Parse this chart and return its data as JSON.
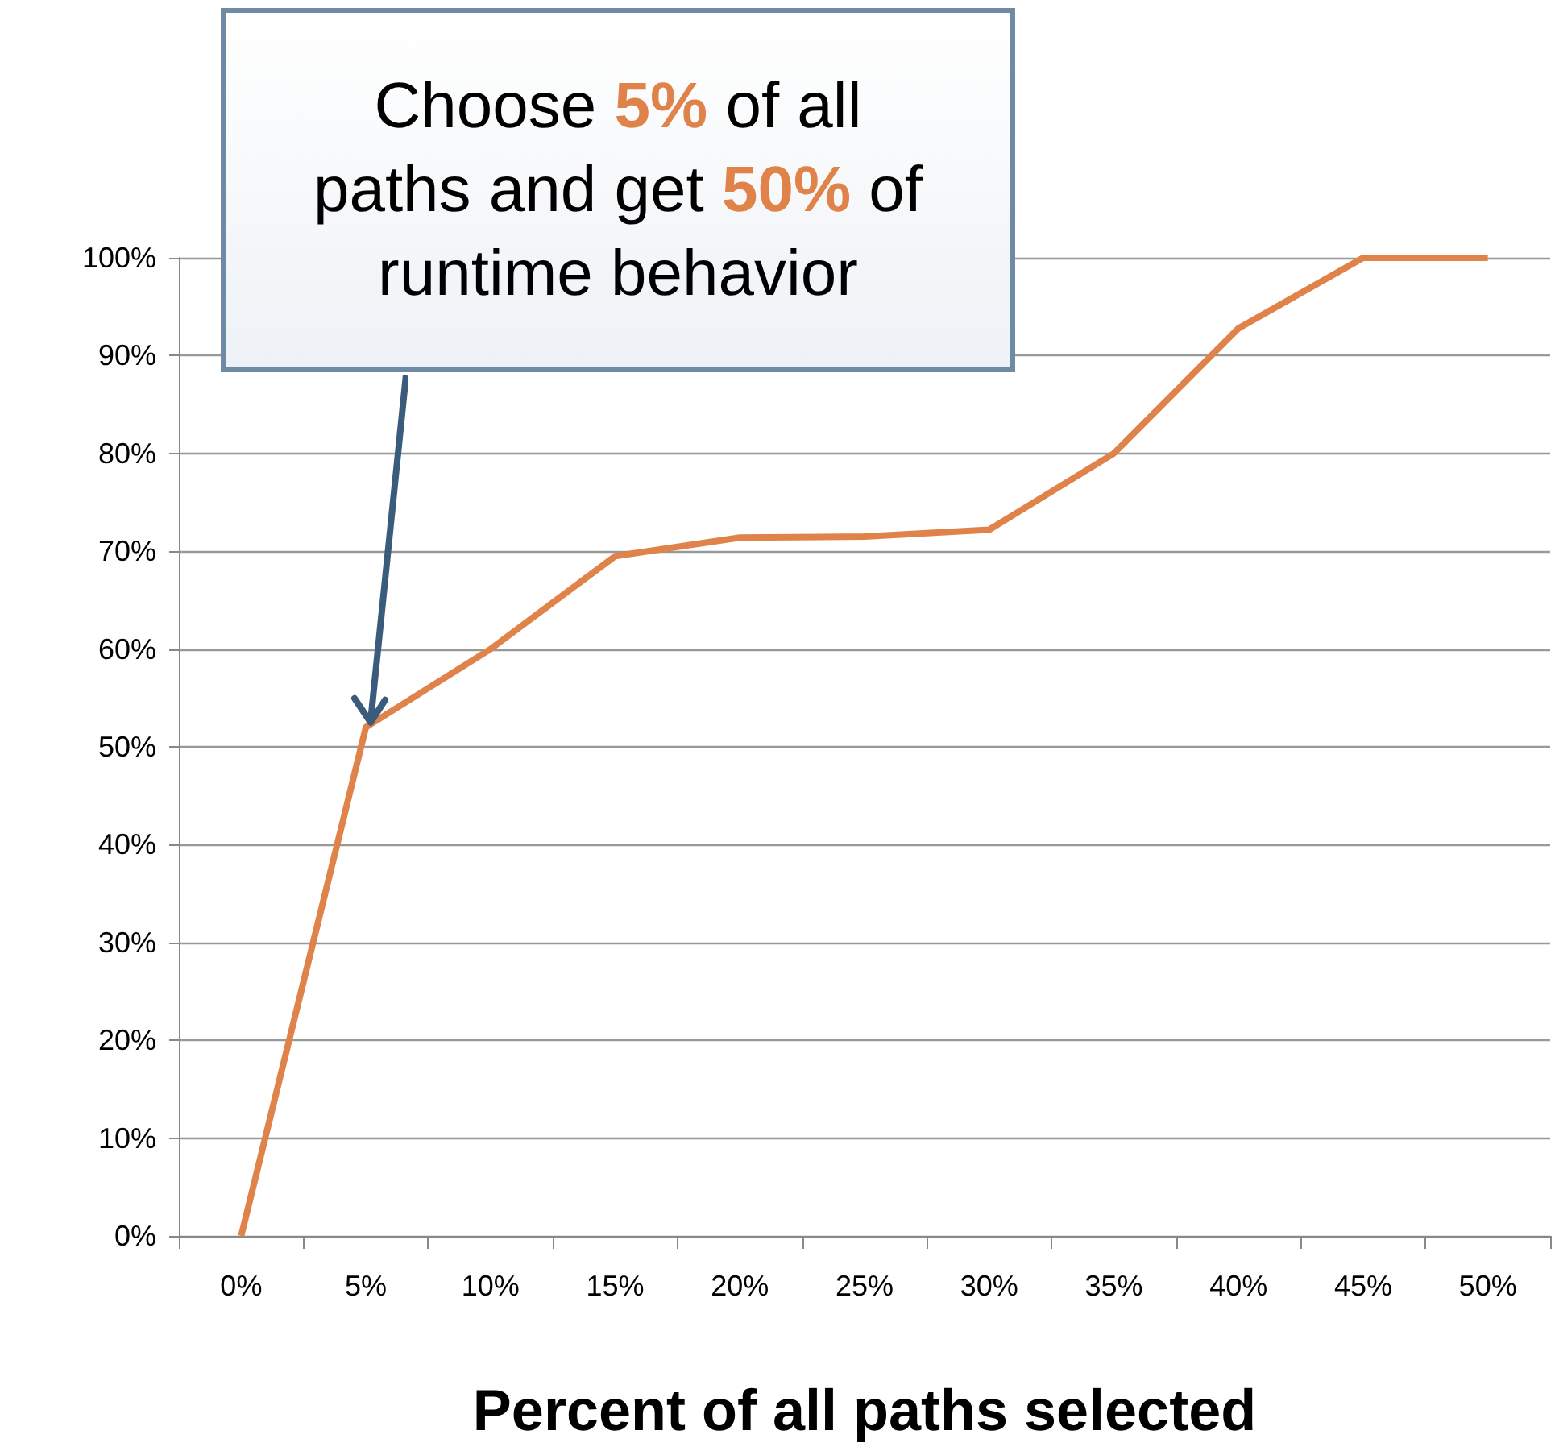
{
  "chart_data": {
    "type": "line",
    "xlabel": "Percent of all paths selected",
    "categories": [
      "0%",
      "5%",
      "10%",
      "15%",
      "20%",
      "25%",
      "30%",
      "35%",
      "40%",
      "45%",
      "50%"
    ],
    "values": [
      0,
      52,
      60,
      69.5,
      71.4,
      71.5,
      72.2,
      80,
      92.8,
      100,
      100
    ],
    "color": "#e0834a",
    "marker": "none",
    "grid": "y",
    "ylim": [
      0,
      100
    ],
    "yticks": [
      {
        "value": 0,
        "label": "0%"
      },
      {
        "value": 10,
        "label": "10%"
      },
      {
        "value": 20,
        "label": "20%"
      },
      {
        "value": 30,
        "label": "30%"
      },
      {
        "value": 40,
        "label": "40%"
      },
      {
        "value": 50,
        "label": "50%"
      },
      {
        "value": 60,
        "label": "60%"
      },
      {
        "value": 70,
        "label": "70%"
      },
      {
        "value": 80,
        "label": "80%"
      },
      {
        "value": 90,
        "label": "90%"
      },
      {
        "value": 100,
        "label": "100%"
      }
    ],
    "annotations": [
      {
        "text": "Choose 5% of all paths and get 50% of runtime behavior",
        "x": "5%",
        "y": 52
      }
    ]
  }
}
